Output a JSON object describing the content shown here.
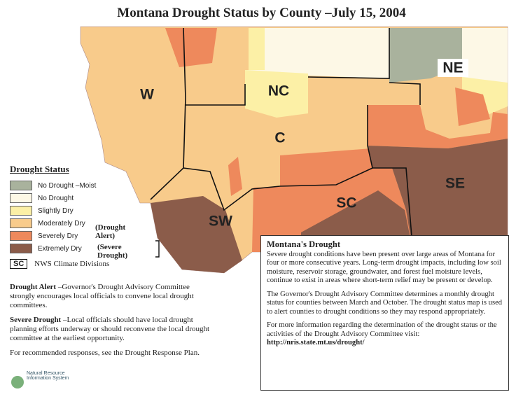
{
  "title": "Montana Drought Status by County –July 15, 2004",
  "map": {
    "division_labels": [
      "W",
      "NC",
      "NE",
      "C",
      "SW",
      "SC",
      "SE"
    ]
  },
  "legend": {
    "title": "Drought Status",
    "items": [
      {
        "label": "No Drought –Moist",
        "color": "#a9b29d"
      },
      {
        "label": "No Drought",
        "color": "#fdf8e6"
      },
      {
        "label": "Slightly Dry",
        "color": "#fcf0a6"
      },
      {
        "label": "Moderately Dry",
        "color": "#f8cb8b"
      },
      {
        "label": "Severely Dry",
        "color": "#ee895c"
      },
      {
        "label": "Extremely Dry",
        "color": "#8b5c4a"
      }
    ],
    "alert_note": "(Drought Alert)",
    "severe_note": "(Severe Drought)",
    "division_key": {
      "code": "SC",
      "label": "NWS Climate Divisions"
    }
  },
  "notes": [
    {
      "term": "Drought Alert",
      "text": "–Governor's Drought Advisory Committee strongly encourages local officials to convene local drought committees."
    },
    {
      "term": "Severe Drought",
      "text": "–Local officials should have local drought planning efforts underway or should reconvene the local drought committee at the earliest opportunity."
    }
  ],
  "plan": "For recommended responses, see the Drought Response Plan.",
  "logo": "Natural Resource Information System",
  "info_box": {
    "title": "Montana's Drought",
    "paragraphs": [
      "Severe drought conditions have been present over large areas of Montana for four or more consecutive years. Long-term drought impacts, including low soil moisture, reservoir storage, groundwater, and forest fuel moisture levels, continue to exist in areas where short-term relief may be present or develop.",
      "The Governor's Drought Advisory Committee determines a monthly drought status for counties between March and October. The drought status map is used to alert counties to drought conditions so they may respond appropriately.",
      "For more information regarding the determination of the drought status or the activities of the Drought Advisory Committee visit:"
    ],
    "url": "http://nris.state.mt.us/drought/"
  }
}
